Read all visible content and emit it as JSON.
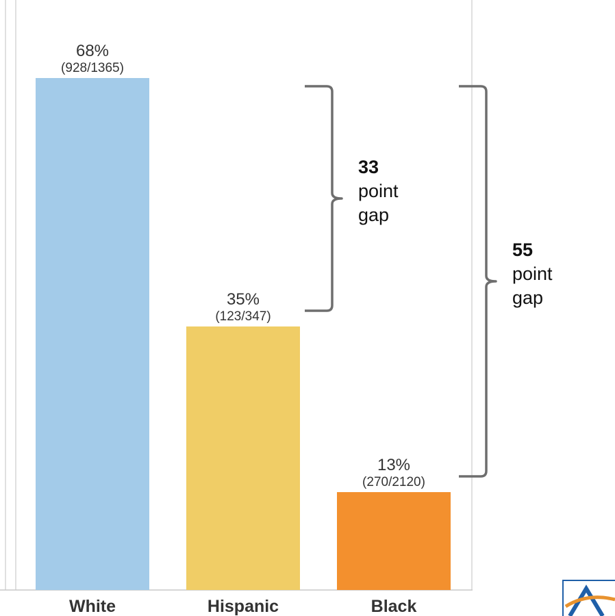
{
  "chart_data": {
    "type": "bar",
    "title": "",
    "xlabel": "",
    "ylabel": "",
    "ylim": [
      0,
      80
    ],
    "categories": [
      "White",
      "Hispanic",
      "Black"
    ],
    "values": [
      68,
      35,
      13
    ],
    "value_labels": [
      "68%",
      "35%",
      "13%"
    ],
    "fraction_labels": [
      "(928/1365)",
      "(123/347)",
      "(270/2120)"
    ],
    "colors": [
      "#a3cbe9",
      "#f0cd66",
      "#f3902e"
    ],
    "annotations": [
      {
        "from": "White",
        "to": "Hispanic",
        "number": "33",
        "line1": "point",
        "line2": "gap"
      },
      {
        "from": "White",
        "to": "Black",
        "number": "55",
        "line1": "point",
        "line2": "gap"
      }
    ],
    "grid": false,
    "legend": "none"
  },
  "logo": {
    "name": "brand-logo",
    "colors": [
      "#1f5fa8",
      "#e8922e"
    ]
  }
}
